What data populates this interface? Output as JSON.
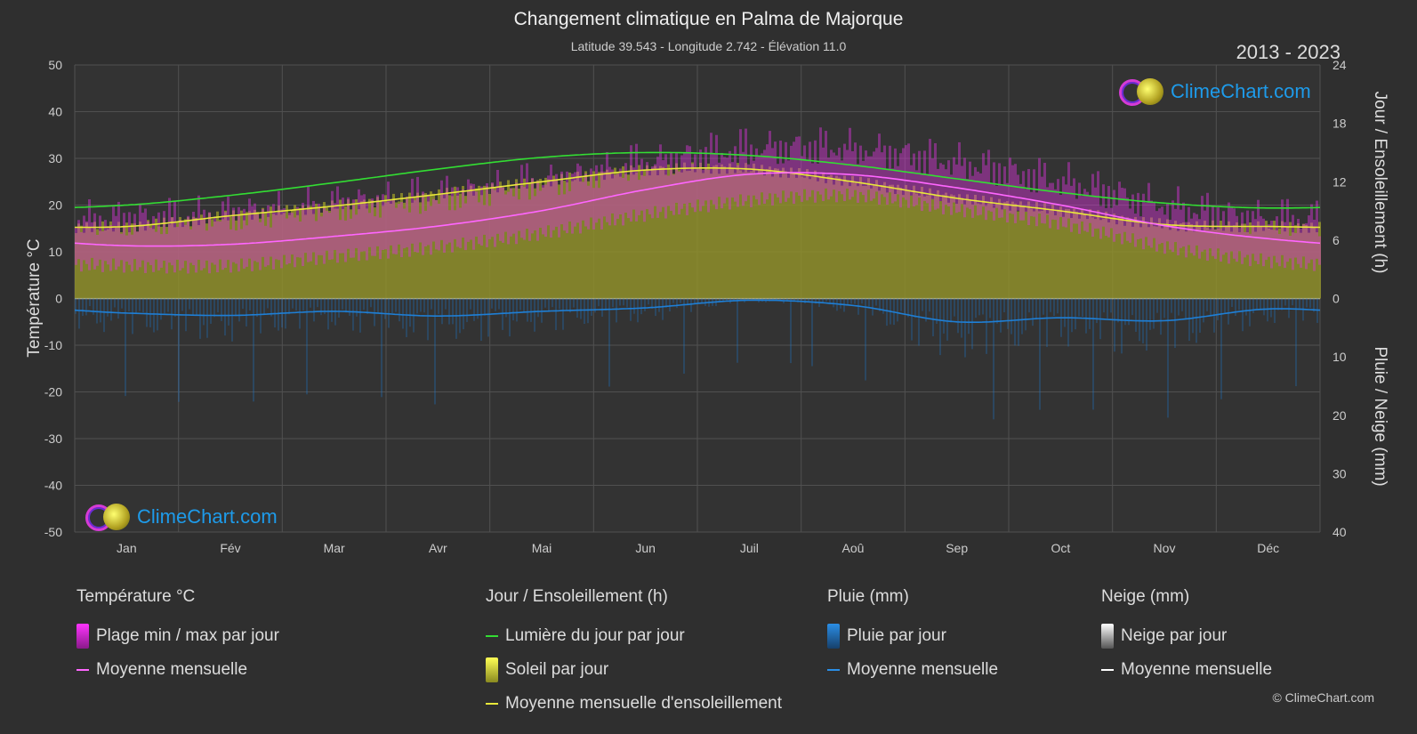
{
  "header": {
    "title": "Changement climatique en Palma de Majorque",
    "subtitle": "Latitude 39.543 - Longitude 2.742 - Élévation 11.0",
    "years": "2013 - 2023"
  },
  "logo_text": "ClimeChart.com",
  "copyright": "© ClimeChart.com",
  "legend": {
    "temperature": {
      "title": "Température °C",
      "range": "Plage min / max par jour",
      "mean": "Moyenne mensuelle"
    },
    "sun": {
      "title": "Jour / Ensoleillement (h)",
      "daylight": "Lumière du jour par jour",
      "sunshine": "Soleil par jour",
      "mean": "Moyenne mensuelle d'ensoleillement"
    },
    "rain": {
      "title": "Pluie (mm)",
      "per_day": "Pluie par jour",
      "mean": "Moyenne mensuelle"
    },
    "snow": {
      "title": "Neige (mm)",
      "per_day": "Neige par jour",
      "mean": "Moyenne mensuelle"
    }
  },
  "colors": {
    "temp_range": "#d633d6",
    "temp_mean": "#ff66ff",
    "daylight": "#33dd33",
    "sunshine_fill": "#8f8f2a",
    "sunshine_mean": "#e8e83a",
    "rain": "#1e7fd6",
    "snow": "#ffffff"
  },
  "chart_data": {
    "type": "line",
    "categories": [
      "Jan",
      "Fév",
      "Mar",
      "Avr",
      "Mai",
      "Jun",
      "Juil",
      "Aoû",
      "Sep",
      "Oct",
      "Nov",
      "Déc"
    ],
    "axes": {
      "left": {
        "label": "Température °C",
        "min": -50,
        "max": 50,
        "ticks": [
          50,
          40,
          30,
          20,
          10,
          0,
          -10,
          -20,
          -30,
          -40,
          -50
        ]
      },
      "right_top": {
        "label": "Jour / Ensoleillement (h)",
        "min": 0,
        "max": 24,
        "ticks": [
          24,
          18,
          12,
          6,
          0
        ]
      },
      "right_bottom": {
        "label": "Pluie / Neige (mm)",
        "min": 0,
        "max": 40,
        "ticks": [
          0,
          10,
          20,
          30,
          40
        ]
      }
    },
    "grid": true,
    "series": [
      {
        "name": "Lumière du jour par jour",
        "axis": "hours",
        "values": [
          9.6,
          10.6,
          11.9,
          13.3,
          14.5,
          15.0,
          14.7,
          13.7,
          12.3,
          10.9,
          9.8,
          9.3
        ]
      },
      {
        "name": "Moyenne mensuelle d'ensoleillement",
        "axis": "hours",
        "values": [
          7.4,
          8.5,
          9.5,
          10.7,
          12.0,
          13.2,
          13.3,
          12.0,
          10.3,
          9.0,
          7.6,
          7.4
        ]
      },
      {
        "name": "Moyenne mensuelle",
        "role": "temp_mean",
        "axis": "temp",
        "values": [
          11.3,
          11.6,
          13.3,
          15.5,
          18.8,
          23.3,
          26.6,
          26.5,
          23.7,
          20.0,
          15.6,
          12.8
        ]
      },
      {
        "name": "Moyenne mensuelle",
        "role": "rain_mean",
        "axis": "rain",
        "values": [
          2.5,
          2.9,
          2.2,
          3.0,
          2.2,
          1.6,
          0.3,
          1.2,
          4.0,
          3.3,
          3.8,
          1.8
        ]
      }
    ],
    "temp_range_daily": {
      "min": [
        7,
        7,
        9,
        11,
        14,
        18,
        21,
        22,
        19,
        16,
        11,
        8
      ],
      "max": [
        16,
        17,
        19,
        21,
        24,
        28,
        31,
        31,
        28,
        24,
        19,
        16
      ]
    }
  }
}
